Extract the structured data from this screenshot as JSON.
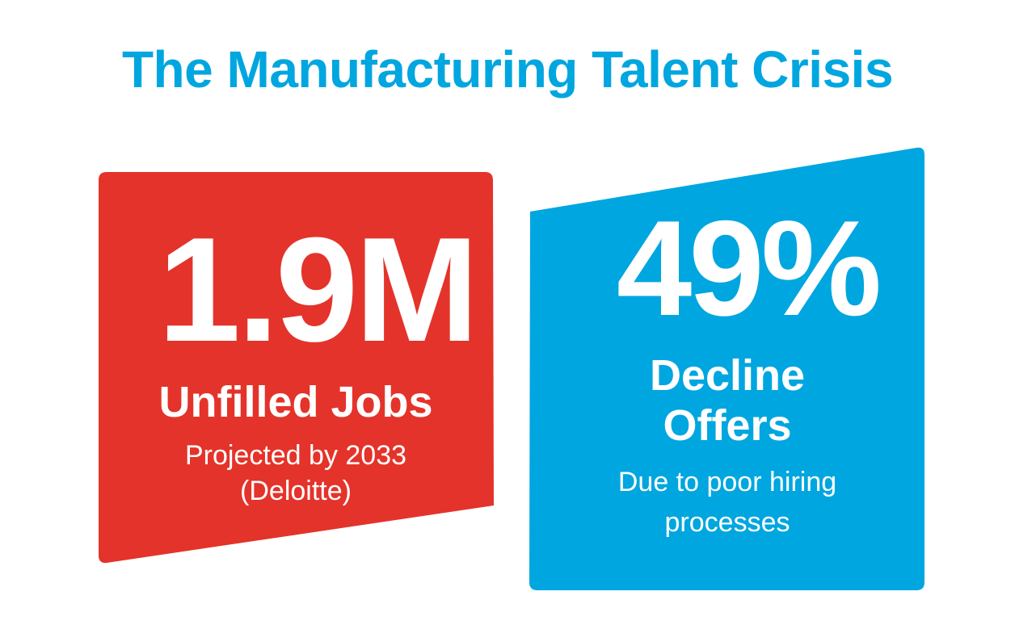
{
  "title": "The Manufacturing Talent Crisis",
  "colors": {
    "title": "#00a6df",
    "left_card": "#e4332a",
    "right_card": "#00a6df",
    "text_on_card": "#ffffff"
  },
  "cards": [
    {
      "stat": "1.9M",
      "label": "Unfilled Jobs",
      "sub_line_1": "Projected by 2033",
      "sub_line_2": "(Deloitte)"
    },
    {
      "stat": "49%",
      "label_line_1": "Decline",
      "label_line_2": "Offers",
      "sub_line_1": "Due to poor hiring",
      "sub_line_2": "processes"
    }
  ]
}
